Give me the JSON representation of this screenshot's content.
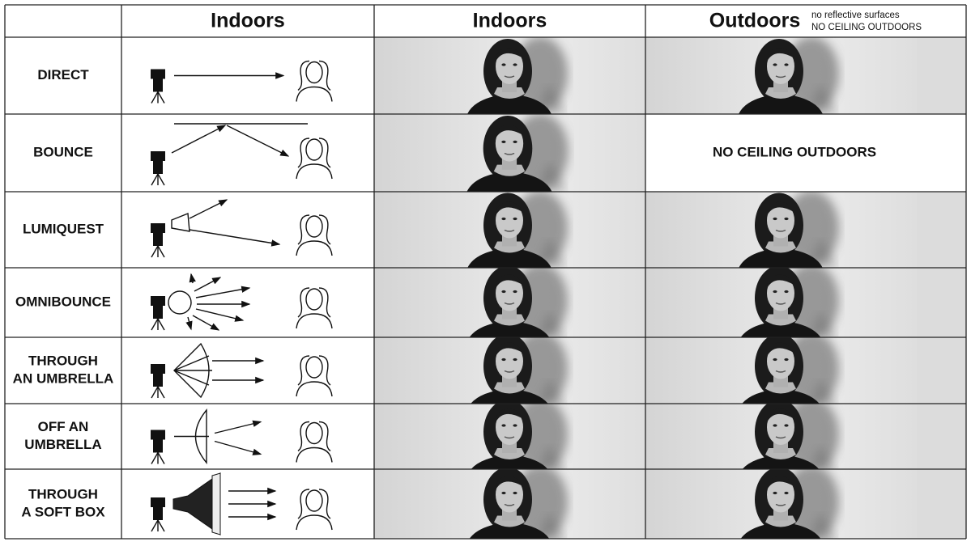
{
  "header": {
    "columns": [
      "Indoors",
      "Indoors",
      "Outdoors"
    ],
    "note": [
      "no reflective surfaces",
      "NO CEILING OUTDOORS"
    ]
  },
  "rows": [
    {
      "label": [
        "DIRECT"
      ]
    },
    {
      "label": [
        "BOUNCE"
      ],
      "outdoor_text": "NO CEILING OUTDOORS"
    },
    {
      "label": [
        "LUMIQUEST"
      ]
    },
    {
      "label": [
        "OMNIBOUNCE"
      ]
    },
    {
      "label": [
        "THROUGH",
        "AN UMBRELLA"
      ]
    },
    {
      "label": [
        "OFF AN",
        "UMBRELLA"
      ]
    },
    {
      "label": [
        "THROUGH",
        "A SOFT BOX"
      ]
    }
  ]
}
